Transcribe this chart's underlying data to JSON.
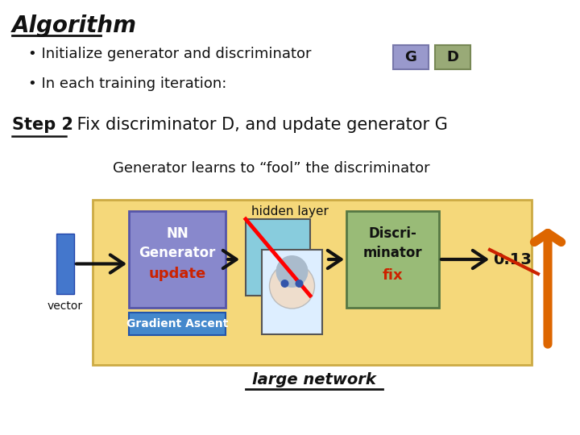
{
  "title": "Algorithm",
  "bullet1": "Initialize generator and discriminator",
  "bullet2": "In each training iteration:",
  "step2_bold": "Step 2",
  "step2_rest": ": Fix discriminator D, and update generator G",
  "generator_learns": "Generator learns to “fool” the discriminator",
  "vector_label": "vector",
  "nn_line1": "NN",
  "nn_line2": "Generator",
  "nn_line3": "update",
  "hidden_label": "hidden layer",
  "discri_line1": "Discri-",
  "discri_line2": "minator",
  "discri_line3": "fix",
  "gradient_label": "Gradient Ascent",
  "large_network": "large network",
  "output_val": "0.13",
  "G_label": "G",
  "D_label": "D",
  "bg_color": "#ffffff",
  "box_fill_yellow": "#f5d87a",
  "box_fill_blue_nn": "#8888cc",
  "box_fill_green_discri": "#99bb77",
  "box_fill_blue_vector": "#4477cc",
  "box_fill_gradient": "#4488cc",
  "G_box_color": "#9999cc",
  "D_box_color": "#99aa77",
  "arrow_color": "#111111",
  "orange_arrow_color": "#dd6600",
  "update_color": "#cc2200",
  "fix_color": "#cc2200",
  "strikethrough_color": "#cc2200",
  "text_color": "#111111"
}
